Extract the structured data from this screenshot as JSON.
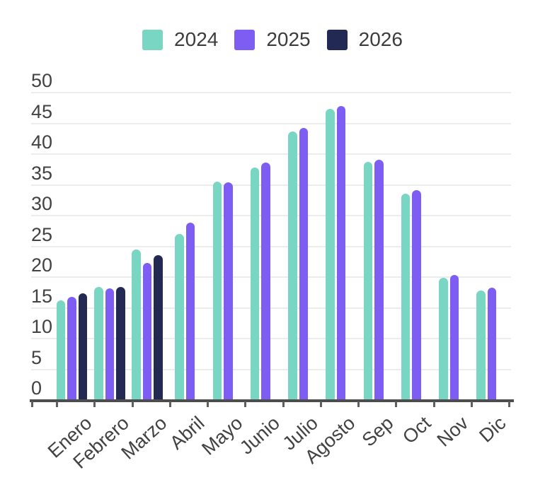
{
  "chart_data": {
    "type": "bar",
    "title": "",
    "xlabel": "",
    "ylabel": "",
    "categories": [
      "Enero",
      "Febrero",
      "Marzo",
      "Abril",
      "Mayo",
      "Junio",
      "Julio",
      "Agosto",
      "Sep",
      "Oct",
      "Nov",
      "Dic"
    ],
    "series": [
      {
        "name": "2024",
        "color": "#78d6c3",
        "values": [
          16.2,
          18.4,
          24.5,
          27.0,
          35.5,
          37.8,
          43.7,
          47.4,
          38.7,
          33.6,
          19.9,
          17.8
        ]
      },
      {
        "name": "2025",
        "color": "#7e5ef2",
        "values": [
          16.8,
          18.2,
          22.3,
          28.9,
          35.4,
          38.6,
          44.2,
          47.8,
          39.1,
          34.1,
          20.3,
          18.3
        ]
      },
      {
        "name": "2026",
        "color": "#222a54",
        "values": [
          17.4,
          18.4,
          23.6,
          null,
          null,
          null,
          null,
          null,
          null,
          null,
          null,
          null
        ]
      }
    ],
    "ylim": [
      0,
      50
    ],
    "yticks": [
      0,
      5,
      10,
      15,
      20,
      25,
      30,
      35,
      40,
      45,
      50
    ],
    "grid": true,
    "legend_position": "top"
  },
  "colors": {
    "grid": "#ececec",
    "axis": "#4d4d4d",
    "tick": "#5f5f5f",
    "axis_text": "#424242",
    "legend_text": "#3c3c3c",
    "background": "#ffffff"
  }
}
